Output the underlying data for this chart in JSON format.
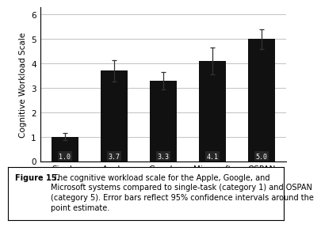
{
  "categories": [
    "Single",
    "Apple",
    "Google",
    "Microsoft",
    "OSPAN"
  ],
  "values": [
    1.0,
    3.7,
    3.3,
    4.1,
    5.0
  ],
  "errors": [
    0.15,
    0.45,
    0.35,
    0.55,
    0.4
  ],
  "bar_color": "#111111",
  "bar_width": 0.55,
  "ylabel": "Cognitive Workload Scale",
  "ylim": [
    0,
    6.3
  ],
  "yticks": [
    0,
    1,
    2,
    3,
    4,
    5,
    6
  ],
  "value_labels": [
    "1.0",
    "3.7",
    "3.3",
    "4.1",
    "5.0"
  ],
  "value_label_fontsize": 6.0,
  "ylabel_fontsize": 7.5,
  "tick_fontsize": 7.5,
  "caption_bold": "Figure 15.",
  "caption_rest": " The cognitive workload scale for the Apple, Google, and\nMicrosoft systems compared to single-task (category 1) and OSPAN\n(category 5). Error bars reflect 95% confidence intervals around the\npoint estimate.",
  "caption_fontsize": 7.0,
  "grid_color": "#aaaaaa",
  "background_color": "#ffffff"
}
